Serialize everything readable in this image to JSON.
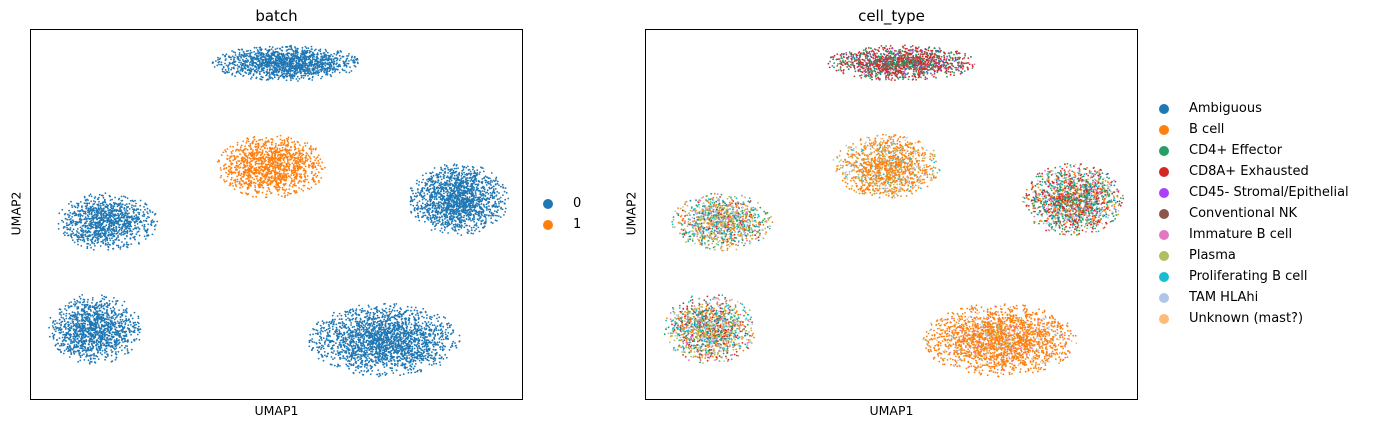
{
  "chart_data": [
    {
      "type": "scatter",
      "title": "batch",
      "xlabel": "UMAP1",
      "ylabel": "UMAP2",
      "grid": false,
      "ticks": false,
      "legend_position": "right",
      "legend": [
        {
          "label": "0",
          "color": "#1f77b4"
        },
        {
          "label": "1",
          "color": "#ff7f0e"
        }
      ],
      "clusters": [
        {
          "label": "0",
          "center": [
            0.52,
            0.91
          ],
          "spread": [
            0.13,
            0.042
          ],
          "n": 1500
        },
        {
          "label": "1",
          "center": [
            0.49,
            0.63
          ],
          "spread": [
            0.095,
            0.075
          ],
          "n": 1300
        },
        {
          "label": "0",
          "center": [
            0.87,
            0.54
          ],
          "spread": [
            0.088,
            0.085
          ],
          "n": 1600
        },
        {
          "label": "0",
          "center": [
            0.155,
            0.48
          ],
          "spread": [
            0.088,
            0.068
          ],
          "n": 1100
        },
        {
          "label": "0",
          "center": [
            0.13,
            0.19
          ],
          "spread": [
            0.082,
            0.082
          ],
          "n": 1300
        },
        {
          "label": "0",
          "center": [
            0.72,
            0.16
          ],
          "spread": [
            0.135,
            0.085
          ],
          "n": 2200
        }
      ]
    },
    {
      "type": "scatter",
      "title": "cell_type",
      "xlabel": "UMAP1",
      "ylabel": "UMAP2",
      "grid": false,
      "ticks": false,
      "legend_position": "right",
      "legend": [
        {
          "label": "Ambiguous",
          "color": "#1f77b4"
        },
        {
          "label": "B cell",
          "color": "#ff7f0e"
        },
        {
          "label": "CD4+ Effector",
          "color": "#279e68"
        },
        {
          "label": "CD8A+ Exhausted",
          "color": "#d62728"
        },
        {
          "label": "CD45- Stromal/Epithelial",
          "color": "#aa40fc"
        },
        {
          "label": "Conventional NK",
          "color": "#8c564b"
        },
        {
          "label": "Immature B cell",
          "color": "#e377c2"
        },
        {
          "label": "Plasma",
          "color": "#b5bd61"
        },
        {
          "label": "Proliferating B cell",
          "color": "#17becf"
        },
        {
          "label": "TAM HLAhi",
          "color": "#aec7e8"
        },
        {
          "label": "Unknown (mast?)",
          "color": "#ffbb78"
        }
      ],
      "clusters": [
        {
          "center": [
            0.52,
            0.91
          ],
          "spread": [
            0.13,
            0.042
          ],
          "n": 1500,
          "composition": {
            "CD8A+ Exhausted": 0.45,
            "CD4+ Effector": 0.28,
            "Conventional NK": 0.12,
            "Ambiguous": 0.08,
            "CD45- Stromal/Epithelial": 0.03,
            "Immature B cell": 0.04
          }
        },
        {
          "center": [
            0.49,
            0.63
          ],
          "spread": [
            0.095,
            0.075
          ],
          "n": 1300,
          "composition": {
            "B cell": 0.62,
            "Plasma": 0.18,
            "TAM HLAhi": 0.1,
            "Proliferating B cell": 0.04,
            "Unknown (mast?)": 0.06
          }
        },
        {
          "center": [
            0.87,
            0.54
          ],
          "spread": [
            0.088,
            0.085
          ],
          "n": 1600,
          "composition": {
            "CD4+ Effector": 0.28,
            "CD8A+ Exhausted": 0.22,
            "B cell": 0.15,
            "TAM HLAhi": 0.1,
            "Proliferating B cell": 0.08,
            "Immature B cell": 0.07,
            "Ambiguous": 0.05,
            "Plasma": 0.05
          }
        },
        {
          "center": [
            0.155,
            0.48
          ],
          "spread": [
            0.088,
            0.068
          ],
          "n": 1100,
          "composition": {
            "Plasma": 0.22,
            "B cell": 0.22,
            "CD4+ Effector": 0.15,
            "Proliferating B cell": 0.12,
            "TAM HLAhi": 0.1,
            "Ambiguous": 0.07,
            "CD8A+ Exhausted": 0.06,
            "Immature B cell": 0.06
          }
        },
        {
          "center": [
            0.13,
            0.19
          ],
          "spread": [
            0.082,
            0.082
          ],
          "n": 1300,
          "composition": {
            "Plasma": 0.2,
            "B cell": 0.2,
            "CD8A+ Exhausted": 0.12,
            "CD4+ Effector": 0.12,
            "Proliferating B cell": 0.12,
            "TAM HLAhi": 0.08,
            "Immature B cell": 0.08,
            "Ambiguous": 0.04,
            "Conventional NK": 0.04
          }
        },
        {
          "center": [
            0.72,
            0.16
          ],
          "spread": [
            0.135,
            0.085
          ],
          "n": 2200,
          "composition": {
            "B cell": 0.8,
            "TAM HLAhi": 0.08,
            "Plasma": 0.05,
            "Unknown (mast?)": 0.04,
            "Immature B cell": 0.03
          }
        }
      ]
    }
  ]
}
